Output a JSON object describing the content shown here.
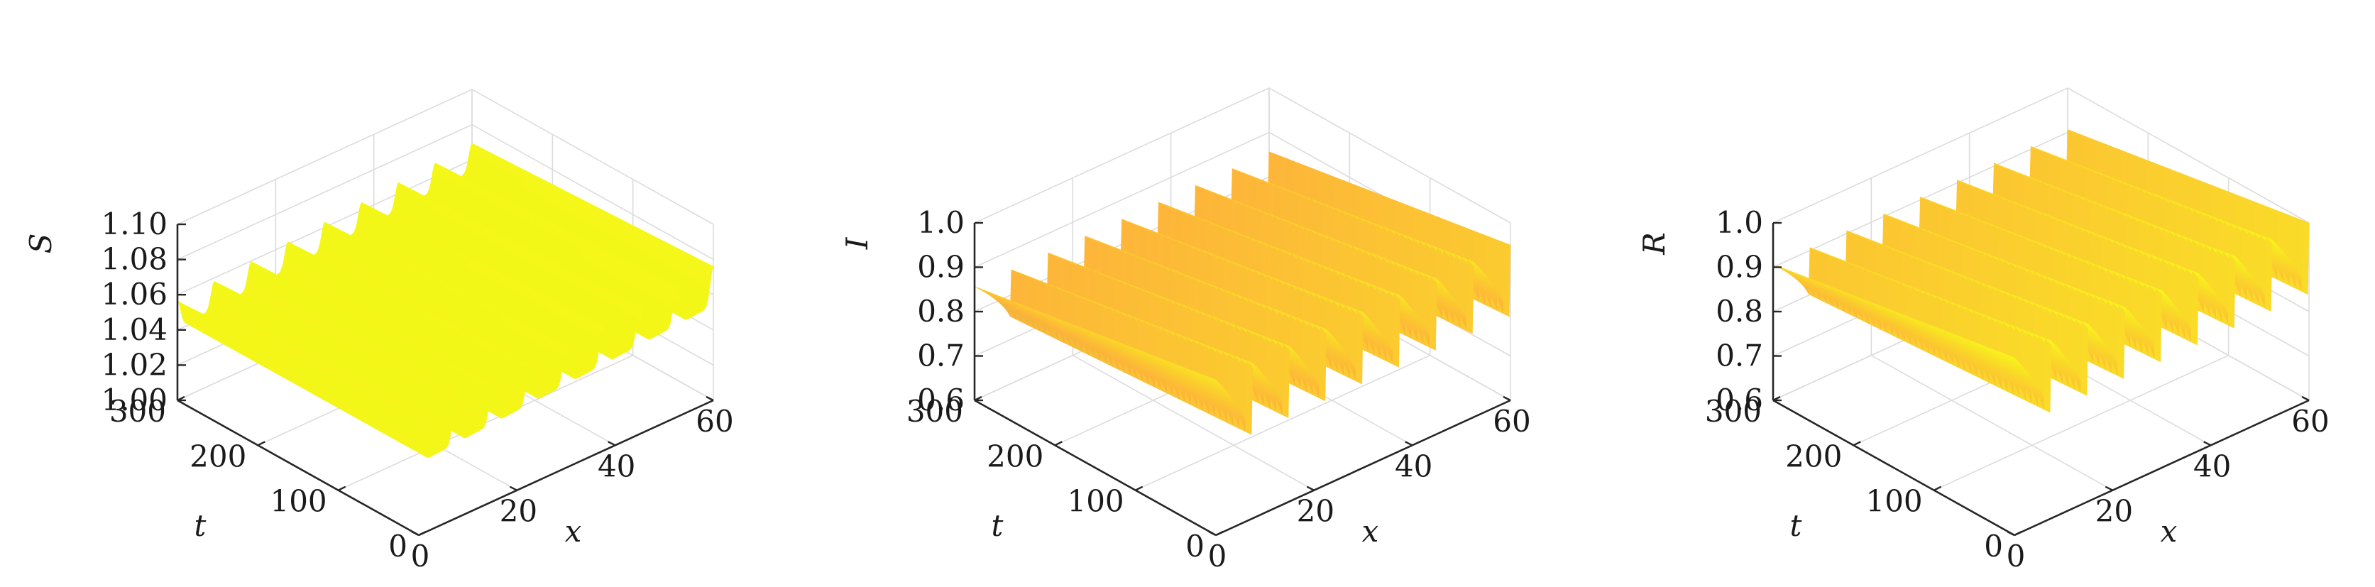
{
  "chart_data": [
    {
      "type": "surface",
      "zlabel": "S",
      "xlabel": "x",
      "ylabel": "t",
      "xlim": [
        0,
        60
      ],
      "ylim": [
        0,
        300
      ],
      "zlim": [
        1.0,
        1.1
      ],
      "xticks": [
        "0",
        "20",
        "40",
        "60"
      ],
      "yticks": [
        "0",
        "100",
        "200",
        "300"
      ],
      "zticks": [
        "1.00",
        "1.02",
        "1.04",
        "1.06",
        "1.08",
        "1.10"
      ],
      "grid": true,
      "colormap": "parula-yellow",
      "colors": {
        "high": "#f5f719",
        "low": "#d9f00f"
      },
      "surface": {
        "time_periodic": true,
        "oscillation_periods_visible": 8,
        "base_at_x0": 1.045,
        "base_at_x60": 1.058,
        "peak": 1.075,
        "trough": 1.04
      }
    },
    {
      "type": "surface",
      "zlabel": "I",
      "xlabel": "x",
      "ylabel": "t",
      "xlim": [
        0,
        60
      ],
      "ylim": [
        0,
        300
      ],
      "zlim": [
        0.6,
        1.0
      ],
      "xticks": [
        "0",
        "20",
        "40",
        "60"
      ],
      "yticks": [
        "0",
        "100",
        "200",
        "300"
      ],
      "zticks": [
        "0.6",
        "0.7",
        "0.8",
        "0.9",
        "1.0"
      ],
      "grid": true,
      "colormap": "parula",
      "colors": {
        "high": "#f7f51b",
        "mid": "#fdb43a",
        "low": "#8fc74a"
      },
      "surface": {
        "time_periodic": true,
        "oscillation_periods_visible": 8,
        "peak": 0.95,
        "trough": 0.63
      }
    },
    {
      "type": "surface",
      "zlabel": "R",
      "xlabel": "x",
      "ylabel": "t",
      "xlim": [
        0,
        60
      ],
      "ylim": [
        0,
        300
      ],
      "zlim": [
        0.6,
        1.0
      ],
      "xticks": [
        "0",
        "20",
        "40",
        "60"
      ],
      "yticks": [
        "0",
        "100",
        "200",
        "300"
      ],
      "zticks": [
        "0.6",
        "0.7",
        "0.8",
        "0.9",
        "1.0"
      ],
      "grid": true,
      "colormap": "parula",
      "colors": {
        "high": "#f7f51b",
        "mid": "#fdb43a",
        "low": "#a9cc3e"
      },
      "surface": {
        "time_periodic": true,
        "oscillation_periods_visible": 8,
        "peak": 1.0,
        "trough": 0.68
      }
    }
  ]
}
